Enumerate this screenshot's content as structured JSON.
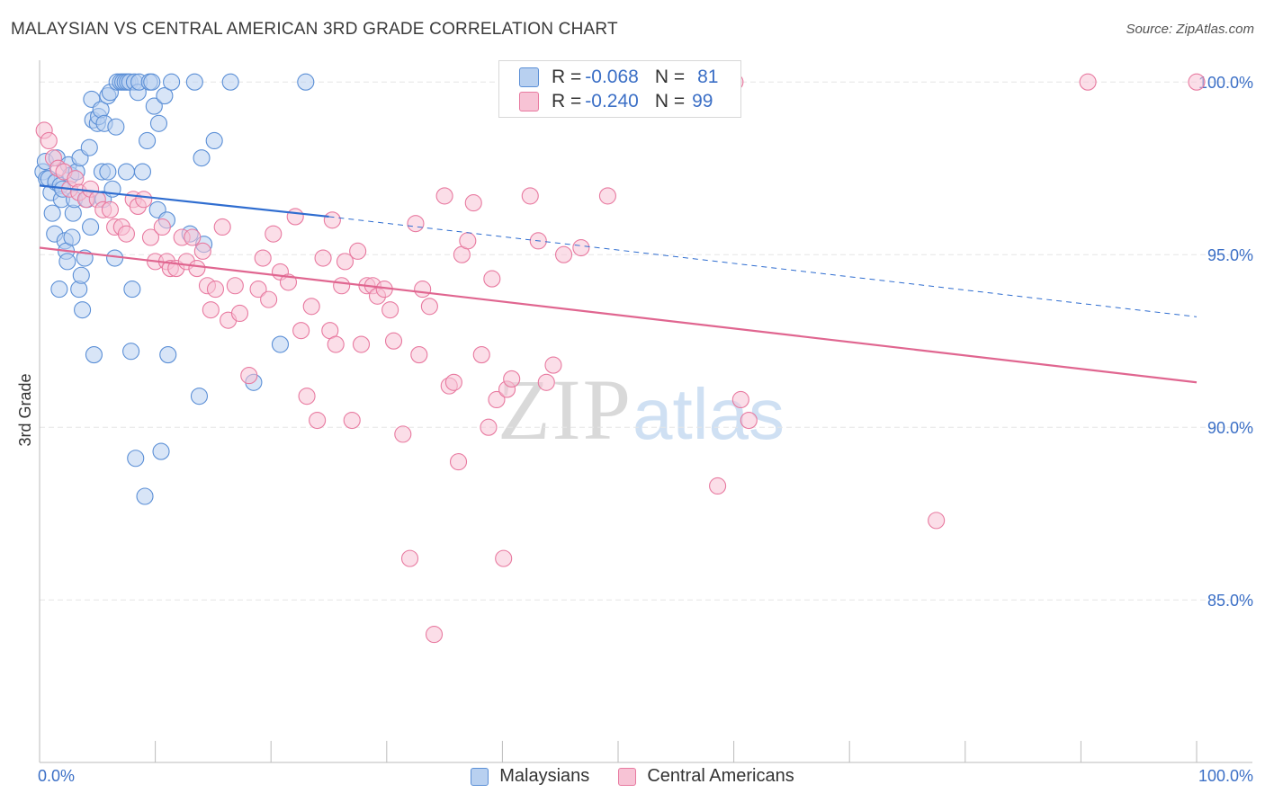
{
  "title": "MALAYSIAN VS CENTRAL AMERICAN 3RD GRADE CORRELATION CHART",
  "source": "Source: ZipAtlas.com",
  "watermark": {
    "zip": "ZIP",
    "atlas": "atlas"
  },
  "colors": {
    "blue": "#5b8fd6",
    "blue_fill": "#b8d0f0",
    "blue_line": "#2f6dd0",
    "pink": "#e87aa0",
    "pink_fill": "#f7c3d5",
    "pink_line": "#e06690",
    "tick_text": "#3b6fc6"
  },
  "legend": {
    "rows": [
      {
        "r_label": "R =",
        "r_value": "-0.068",
        "n_label": "N =",
        "n_value": "81"
      },
      {
        "r_label": "R =",
        "r_value": "-0.240",
        "n_label": "N =",
        "n_value": "99"
      }
    ]
  },
  "bottom_legend": {
    "series1": "Malaysians",
    "series2": "Central Americans"
  },
  "chart_data": {
    "type": "scatter",
    "title": "MALAYSIAN VS CENTRAL AMERICAN 3RD GRADE CORRELATION CHART",
    "xlabel": "",
    "ylabel": "3rd Grade",
    "xlim": [
      0,
      100
    ],
    "ylim": [
      80.5,
      100.5
    ],
    "x_tick_labels": [
      "0.0%",
      "100.0%"
    ],
    "y_ticks": [
      85,
      90,
      95,
      100
    ],
    "y_tick_labels": [
      "85.0%",
      "90.0%",
      "95.0%",
      "100.0%"
    ],
    "grid": true,
    "legend_position": "top-center",
    "series": [
      {
        "name": "Malaysians",
        "color": "#5b8fd6",
        "trend": {
          "x": [
            0,
            25
          ],
          "y": [
            97.0,
            96.1
          ],
          "dashed_to": [
            100,
            93.2
          ]
        },
        "points": [
          [
            0.3,
            97.4
          ],
          [
            0.5,
            97.7
          ],
          [
            0.6,
            97.2
          ],
          [
            0.8,
            97.2
          ],
          [
            1.0,
            96.8
          ],
          [
            1.1,
            96.2
          ],
          [
            1.3,
            95.6
          ],
          [
            1.4,
            97.1
          ],
          [
            1.5,
            97.8
          ],
          [
            1.7,
            94.0
          ],
          [
            1.8,
            97.0
          ],
          [
            1.9,
            96.6
          ],
          [
            2.0,
            96.9
          ],
          [
            2.2,
            95.4
          ],
          [
            2.3,
            95.1
          ],
          [
            2.4,
            94.8
          ],
          [
            2.5,
            97.6
          ],
          [
            2.7,
            97.3
          ],
          [
            2.8,
            95.5
          ],
          [
            2.9,
            96.2
          ],
          [
            3.0,
            96.6
          ],
          [
            3.2,
            97.4
          ],
          [
            3.4,
            94.0
          ],
          [
            3.5,
            97.8
          ],
          [
            3.6,
            94.4
          ],
          [
            3.7,
            93.4
          ],
          [
            3.9,
            94.9
          ],
          [
            4.1,
            96.6
          ],
          [
            4.3,
            98.1
          ],
          [
            4.4,
            95.8
          ],
          [
            4.5,
            99.5
          ],
          [
            4.6,
            98.9
          ],
          [
            4.7,
            92.1
          ],
          [
            5.0,
            98.8
          ],
          [
            5.1,
            99.0
          ],
          [
            5.3,
            99.2
          ],
          [
            5.4,
            97.4
          ],
          [
            5.5,
            96.6
          ],
          [
            5.6,
            98.8
          ],
          [
            5.9,
            97.4
          ],
          [
            5.9,
            99.6
          ],
          [
            6.1,
            99.7
          ],
          [
            6.3,
            96.9
          ],
          [
            6.5,
            94.9
          ],
          [
            6.6,
            98.7
          ],
          [
            6.7,
            100.0
          ],
          [
            7.0,
            100.0
          ],
          [
            7.2,
            100.0
          ],
          [
            7.4,
            100.0
          ],
          [
            7.6,
            100.0
          ],
          [
            7.8,
            100.0
          ],
          [
            7.9,
            92.2
          ],
          [
            8.0,
            94.0
          ],
          [
            8.2,
            100.0
          ],
          [
            8.3,
            89.1
          ],
          [
            8.5,
            99.7
          ],
          [
            8.6,
            100.0
          ],
          [
            8.9,
            97.4
          ],
          [
            9.1,
            88.0
          ],
          [
            9.3,
            98.3
          ],
          [
            9.5,
            100.0
          ],
          [
            9.7,
            100.0
          ],
          [
            9.9,
            99.3
          ],
          [
            10.2,
            96.3
          ],
          [
            10.3,
            98.8
          ],
          [
            10.5,
            89.3
          ],
          [
            10.8,
            99.6
          ],
          [
            11.1,
            92.1
          ],
          [
            11.4,
            100.0
          ],
          [
            13.4,
            100.0
          ],
          [
            11.0,
            96.0
          ],
          [
            13.0,
            95.6
          ],
          [
            13.8,
            90.9
          ],
          [
            14.2,
            95.3
          ],
          [
            15.1,
            98.3
          ],
          [
            16.5,
            100.0
          ],
          [
            18.5,
            91.3
          ],
          [
            20.8,
            92.4
          ],
          [
            23.0,
            100.0
          ],
          [
            14.0,
            97.8
          ],
          [
            7.5,
            97.4
          ]
        ]
      },
      {
        "name": "Central Americans",
        "color": "#e87aa0",
        "trend": {
          "x": [
            0,
            100
          ],
          "y": [
            95.2,
            91.3
          ]
        },
        "points": [
          [
            0.4,
            98.6
          ],
          [
            0.8,
            98.3
          ],
          [
            1.2,
            97.8
          ],
          [
            1.6,
            97.5
          ],
          [
            2.1,
            97.4
          ],
          [
            2.6,
            96.9
          ],
          [
            3.1,
            97.2
          ],
          [
            3.4,
            96.8
          ],
          [
            4.0,
            96.6
          ],
          [
            4.4,
            96.9
          ],
          [
            5.0,
            96.6
          ],
          [
            5.5,
            96.3
          ],
          [
            6.1,
            96.3
          ],
          [
            6.5,
            95.8
          ],
          [
            7.1,
            95.8
          ],
          [
            7.5,
            95.6
          ],
          [
            8.1,
            96.6
          ],
          [
            8.5,
            96.4
          ],
          [
            9.0,
            96.6
          ],
          [
            9.6,
            95.5
          ],
          [
            10.0,
            94.8
          ],
          [
            10.6,
            95.8
          ],
          [
            11.0,
            94.8
          ],
          [
            11.3,
            94.6
          ],
          [
            11.8,
            94.6
          ],
          [
            12.3,
            95.5
          ],
          [
            12.7,
            94.8
          ],
          [
            13.2,
            95.5
          ],
          [
            13.6,
            94.6
          ],
          [
            14.1,
            95.1
          ],
          [
            14.5,
            94.1
          ],
          [
            14.8,
            93.4
          ],
          [
            15.2,
            94.0
          ],
          [
            15.8,
            95.8
          ],
          [
            16.3,
            93.1
          ],
          [
            16.9,
            94.1
          ],
          [
            17.3,
            93.3
          ],
          [
            18.1,
            91.5
          ],
          [
            18.9,
            94.0
          ],
          [
            19.3,
            94.9
          ],
          [
            19.8,
            93.7
          ],
          [
            20.2,
            95.6
          ],
          [
            20.8,
            94.5
          ],
          [
            21.5,
            94.2
          ],
          [
            22.1,
            96.1
          ],
          [
            22.6,
            92.8
          ],
          [
            23.1,
            90.9
          ],
          [
            23.5,
            93.5
          ],
          [
            24.0,
            90.2
          ],
          [
            24.5,
            94.9
          ],
          [
            25.1,
            92.8
          ],
          [
            25.6,
            92.4
          ],
          [
            26.1,
            94.1
          ],
          [
            26.4,
            94.8
          ],
          [
            27.0,
            90.2
          ],
          [
            27.5,
            95.1
          ],
          [
            27.8,
            92.4
          ],
          [
            28.3,
            94.1
          ],
          [
            28.8,
            94.1
          ],
          [
            29.2,
            93.8
          ],
          [
            29.8,
            94.0
          ],
          [
            30.3,
            93.4
          ],
          [
            30.6,
            92.5
          ],
          [
            31.4,
            89.8
          ],
          [
            32.0,
            86.2
          ],
          [
            32.5,
            95.9
          ],
          [
            32.8,
            92.1
          ],
          [
            33.1,
            94.0
          ],
          [
            33.7,
            93.5
          ],
          [
            34.1,
            84.0
          ],
          [
            35.4,
            91.2
          ],
          [
            35.8,
            91.3
          ],
          [
            36.2,
            89.0
          ],
          [
            36.5,
            95.0
          ],
          [
            37.0,
            95.4
          ],
          [
            37.5,
            96.5
          ],
          [
            38.2,
            92.1
          ],
          [
            38.8,
            90.0
          ],
          [
            39.1,
            94.3
          ],
          [
            39.5,
            90.8
          ],
          [
            40.1,
            86.2
          ],
          [
            40.4,
            91.1
          ],
          [
            40.8,
            91.4
          ],
          [
            42.4,
            96.7
          ],
          [
            43.1,
            95.4
          ],
          [
            43.8,
            91.3
          ],
          [
            44.4,
            91.8
          ],
          [
            45.3,
            95.0
          ],
          [
            46.8,
            95.2
          ],
          [
            49.1,
            96.7
          ],
          [
            58.6,
            88.3
          ],
          [
            60.1,
            100.0
          ],
          [
            60.6,
            90.8
          ],
          [
            61.3,
            90.2
          ],
          [
            77.5,
            87.3
          ],
          [
            90.6,
            100.0
          ],
          [
            100.0,
            100.0
          ],
          [
            35.0,
            96.7
          ],
          [
            25.3,
            96.0
          ]
        ]
      }
    ]
  }
}
